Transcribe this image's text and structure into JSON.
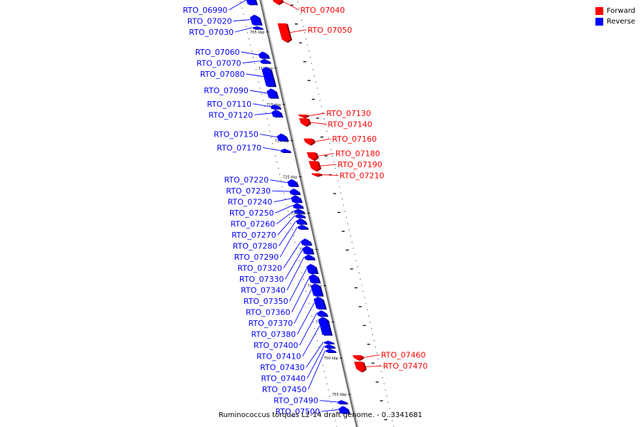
{
  "legend": {
    "forward_label": "Forward",
    "reverse_label": "Reverse",
    "forward_color": "#ff0000",
    "reverse_color": "#0000ff"
  },
  "caption": "Ruminococcus torques L2-14 draft genome. - 0..3341681",
  "axis": {
    "unit": "kbp",
    "start_kbp": 700,
    "end_kbp": 760,
    "tick_labels": [
      "705 kbp",
      "710 kbp",
      "715 kbp",
      "720 kbp",
      "725 kbp",
      "730 kbp",
      "735 kbp",
      "740 kbp",
      "745 kbp",
      "750 kbp",
      "755 kbp"
    ]
  },
  "genes": [
    {
      "id": "RTO_06990",
      "strand": "reverse",
      "start_kbp": 700.0,
      "end_kbp": 701.2
    },
    {
      "id": "RTO_07020",
      "strand": "reverse",
      "start_kbp": 702.6,
      "end_kbp": 704.0
    },
    {
      "id": "RTO_07030",
      "strand": "reverse",
      "start_kbp": 704.2,
      "end_kbp": 704.6
    },
    {
      "id": "RTO_07040",
      "strand": "forward",
      "start_kbp": 700.2,
      "end_kbp": 701.2
    },
    {
      "id": "RTO_07050",
      "strand": "forward",
      "start_kbp": 703.8,
      "end_kbp": 706.4
    },
    {
      "id": "RTO_07060",
      "strand": "reverse",
      "start_kbp": 707.7,
      "end_kbp": 708.6
    },
    {
      "id": "RTO_07070",
      "strand": "reverse",
      "start_kbp": 708.7,
      "end_kbp": 709.3
    },
    {
      "id": "RTO_07080",
      "strand": "reverse",
      "start_kbp": 709.8,
      "end_kbp": 712.5
    },
    {
      "id": "RTO_07090",
      "strand": "reverse",
      "start_kbp": 712.8,
      "end_kbp": 714.1
    },
    {
      "id": "RTO_07110",
      "strand": "reverse",
      "start_kbp": 715.0,
      "end_kbp": 715.6
    },
    {
      "id": "RTO_07120",
      "strand": "reverse",
      "start_kbp": 715.7,
      "end_kbp": 716.7
    },
    {
      "id": "RTO_07130",
      "strand": "forward",
      "start_kbp": 716.4,
      "end_kbp": 716.8
    },
    {
      "id": "RTO_07140",
      "strand": "forward",
      "start_kbp": 716.9,
      "end_kbp": 718.0
    },
    {
      "id": "RTO_07150",
      "strand": "reverse",
      "start_kbp": 719.0,
      "end_kbp": 720.0
    },
    {
      "id": "RTO_07160",
      "strand": "forward",
      "start_kbp": 719.7,
      "end_kbp": 720.6
    },
    {
      "id": "RTO_07170",
      "strand": "reverse",
      "start_kbp": 721.1,
      "end_kbp": 721.6
    },
    {
      "id": "RTO_07180",
      "strand": "forward",
      "start_kbp": 721.6,
      "end_kbp": 722.7
    },
    {
      "id": "RTO_07190",
      "strand": "forward",
      "start_kbp": 722.8,
      "end_kbp": 724.2
    },
    {
      "id": "RTO_07210",
      "strand": "forward",
      "start_kbp": 724.5,
      "end_kbp": 724.9
    },
    {
      "id": "RTO_07220",
      "strand": "reverse",
      "start_kbp": 725.3,
      "end_kbp": 726.3
    },
    {
      "id": "RTO_07230",
      "strand": "reverse",
      "start_kbp": 726.6,
      "end_kbp": 727.4
    },
    {
      "id": "RTO_07240",
      "strand": "reverse",
      "start_kbp": 727.5,
      "end_kbp": 728.5
    },
    {
      "id": "RTO_07250",
      "strand": "reverse",
      "start_kbp": 728.6,
      "end_kbp": 729.3
    },
    {
      "id": "RTO_07260",
      "strand": "reverse",
      "start_kbp": 729.4,
      "end_kbp": 730.0
    },
    {
      "id": "RTO_07270",
      "strand": "reverse",
      "start_kbp": 730.1,
      "end_kbp": 730.6
    },
    {
      "id": "RTO_07280",
      "strand": "reverse",
      "start_kbp": 730.7,
      "end_kbp": 731.5
    },
    {
      "id": "RTO_07290",
      "strand": "reverse",
      "start_kbp": 731.6,
      "end_kbp": 732.2
    },
    {
      "id": "RTO_07320",
      "strand": "reverse",
      "start_kbp": 733.5,
      "end_kbp": 734.4
    },
    {
      "id": "RTO_07330",
      "strand": "reverse",
      "start_kbp": 734.5,
      "end_kbp": 735.6
    },
    {
      "id": "RTO_07340",
      "strand": "reverse",
      "start_kbp": 735.7,
      "end_kbp": 736.4
    },
    {
      "id": "RTO_07350",
      "strand": "reverse",
      "start_kbp": 737.0,
      "end_kbp": 738.3
    },
    {
      "id": "RTO_07360",
      "strand": "reverse",
      "start_kbp": 738.4,
      "end_kbp": 739.6
    },
    {
      "id": "RTO_07370",
      "strand": "reverse",
      "start_kbp": 739.7,
      "end_kbp": 741.4
    },
    {
      "id": "RTO_07380",
      "strand": "reverse",
      "start_kbp": 741.5,
      "end_kbp": 743.2
    },
    {
      "id": "RTO_07400",
      "strand": "reverse",
      "start_kbp": 743.4,
      "end_kbp": 744.2
    },
    {
      "id": "RTO_07410",
      "strand": "reverse",
      "start_kbp": 744.3,
      "end_kbp": 746.8
    },
    {
      "id": "RTO_07430",
      "strand": "reverse",
      "start_kbp": 747.6,
      "end_kbp": 748.0
    },
    {
      "id": "RTO_07440",
      "strand": "reverse",
      "start_kbp": 748.1,
      "end_kbp": 748.6
    },
    {
      "id": "RTO_07450",
      "strand": "reverse",
      "start_kbp": 748.7,
      "end_kbp": 749.2
    },
    {
      "id": "RTO_07460",
      "strand": "forward",
      "start_kbp": 749.6,
      "end_kbp": 750.3
    },
    {
      "id": "RTO_07470",
      "strand": "forward",
      "start_kbp": 750.5,
      "end_kbp": 751.9
    },
    {
      "id": "RTO_07490",
      "strand": "reverse",
      "start_kbp": 755.8,
      "end_kbp": 756.3
    },
    {
      "id": "RTO_07500",
      "strand": "reverse",
      "start_kbp": 756.6,
      "end_kbp": 757.6
    }
  ]
}
